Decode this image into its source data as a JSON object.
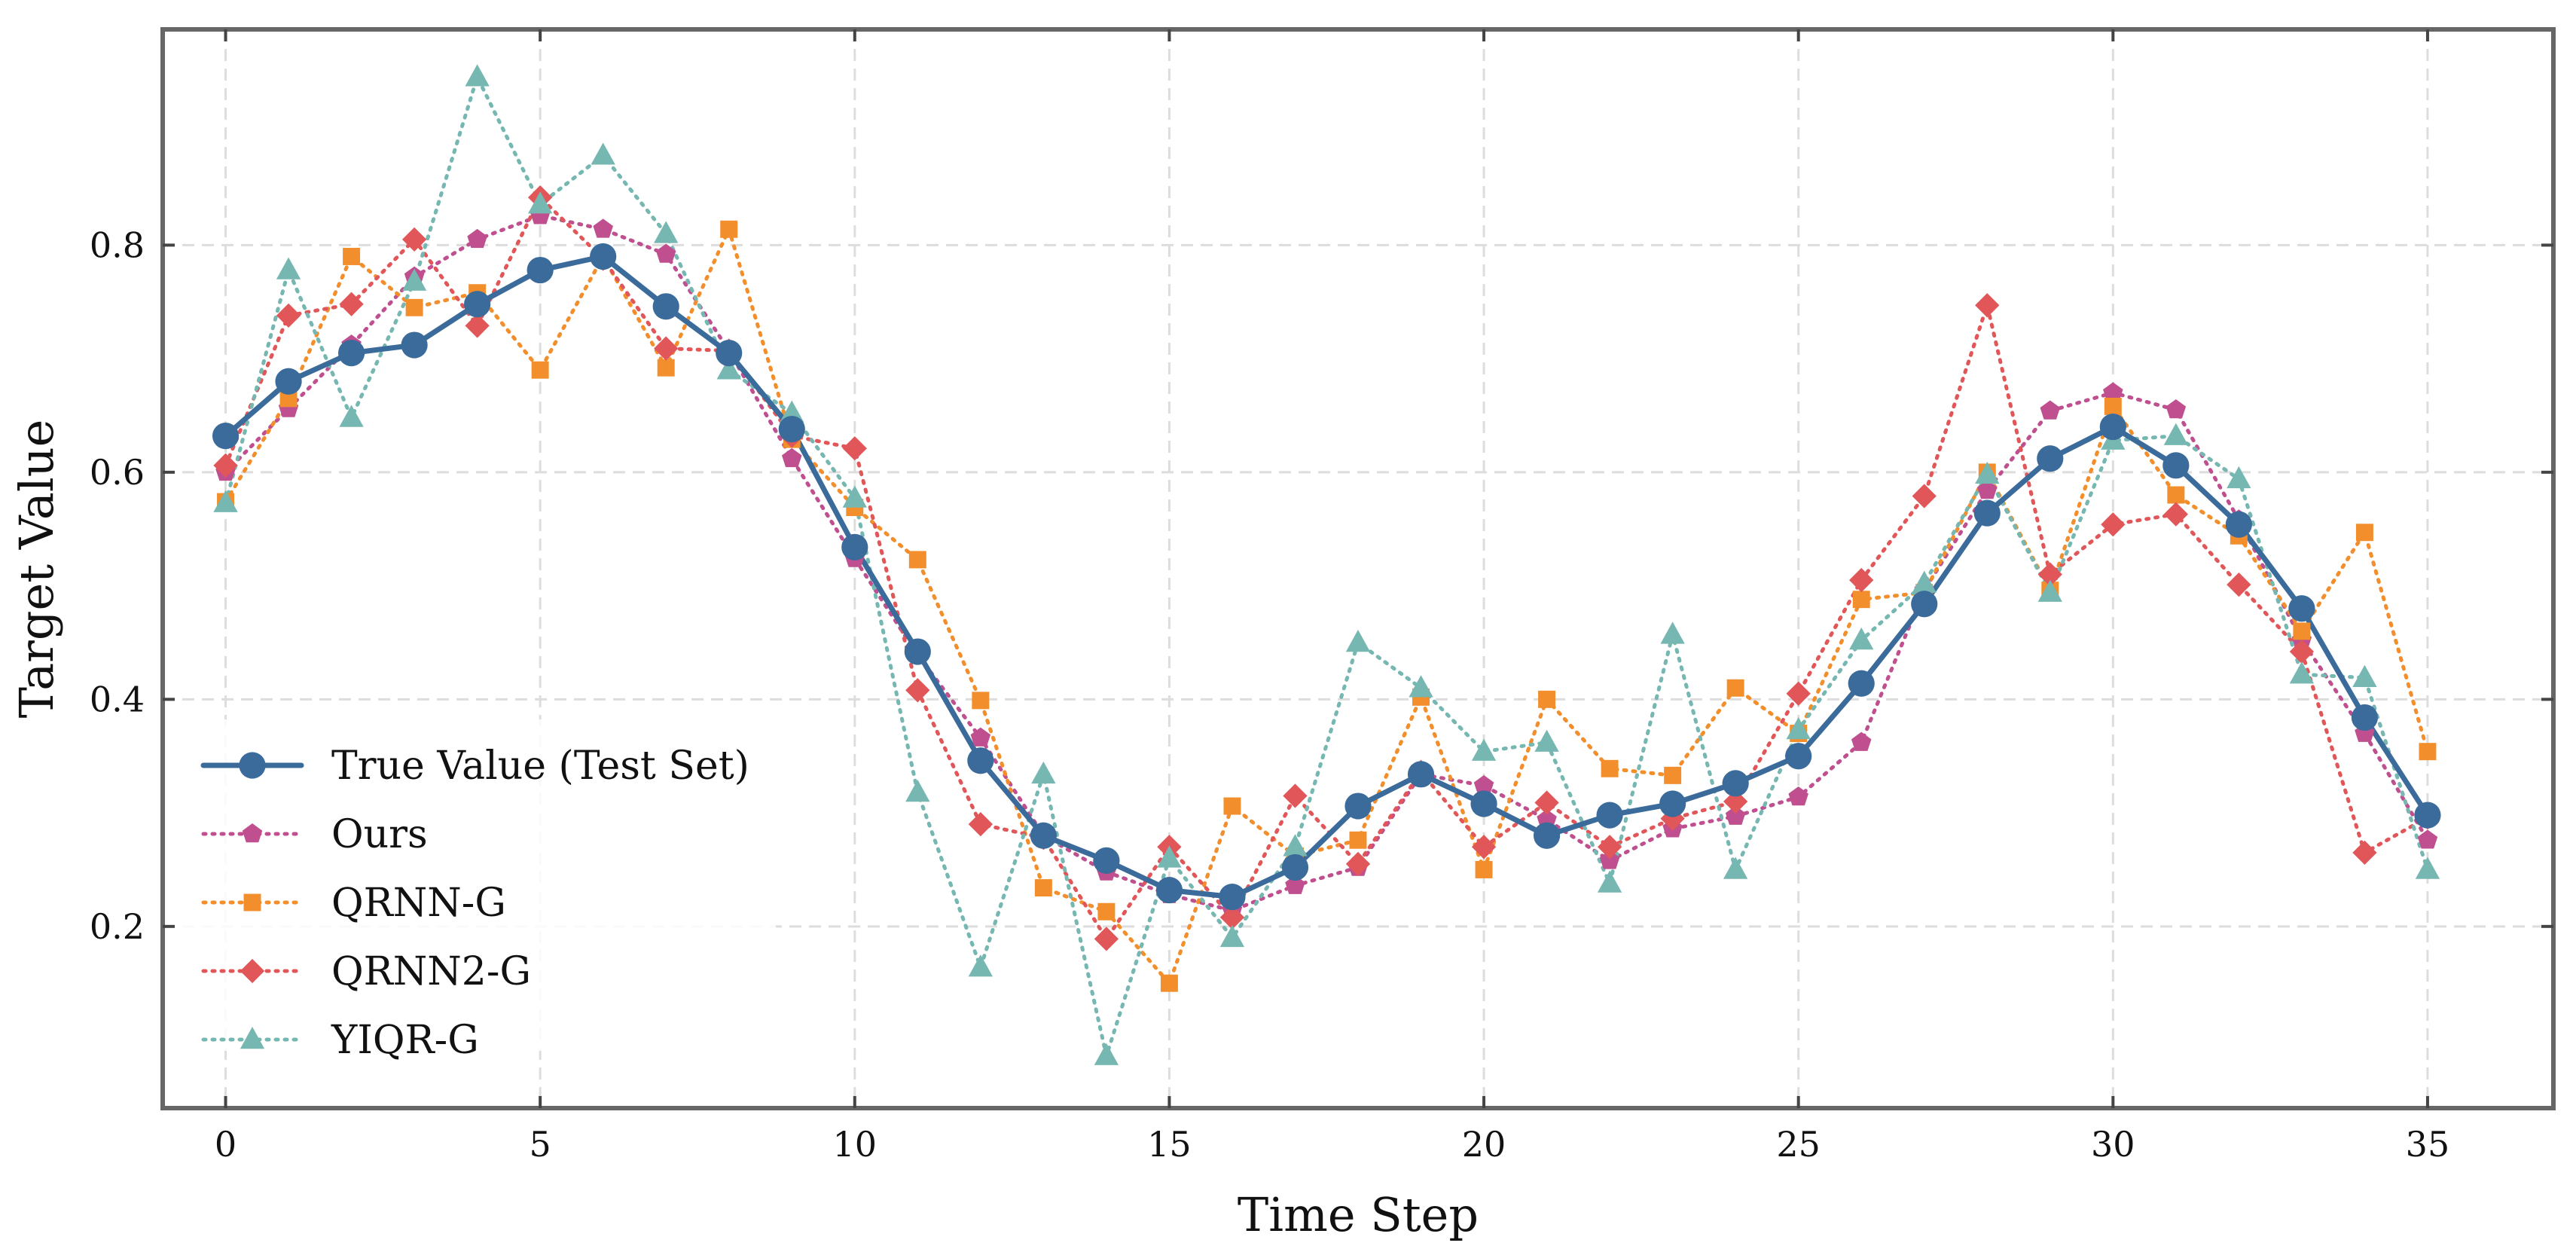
{
  "chart_data": {
    "type": "line",
    "title": "",
    "xlabel": "Time Step",
    "ylabel": "Target Value",
    "xlim": [
      -1,
      37
    ],
    "ylim": [
      0.04,
      0.99
    ],
    "xticks": [
      0,
      5,
      10,
      15,
      20,
      25,
      30,
      35
    ],
    "yticks": [
      0.2,
      0.4,
      0.6,
      0.8
    ],
    "xtick_labels": [
      "0",
      "5",
      "10",
      "15",
      "20",
      "25",
      "30",
      "35"
    ],
    "ytick_labels": [
      "0.2",
      "0.4",
      "0.6",
      "0.8"
    ],
    "grid": true,
    "legend_position": "lower-left",
    "x": [
      0,
      1,
      2,
      3,
      4,
      5,
      6,
      7,
      8,
      9,
      10,
      11,
      12,
      13,
      14,
      15,
      16,
      17,
      18,
      19,
      20,
      21,
      22,
      23,
      24,
      25,
      26,
      27,
      28,
      29,
      30,
      31,
      32,
      33,
      34,
      35
    ],
    "series": [
      {
        "name": "True Value (Test Set)",
        "color": "#3b6b9a",
        "marker": "circle",
        "linestyle": "solid",
        "values": [
          0.632,
          0.68,
          0.705,
          0.712,
          0.748,
          0.778,
          0.79,
          0.746,
          0.705,
          0.638,
          0.534,
          0.442,
          0.346,
          0.28,
          0.258,
          0.232,
          0.226,
          0.252,
          0.306,
          0.334,
          0.308,
          0.28,
          0.298,
          0.308,
          0.326,
          0.35,
          0.414,
          0.484,
          0.564,
          0.612,
          0.64,
          0.606,
          0.554,
          0.48,
          0.384,
          0.298
        ]
      },
      {
        "name": "Ours",
        "color": "#bf4f8f",
        "marker": "pentagon",
        "linestyle": "dotted",
        "values": [
          0.6,
          0.656,
          0.712,
          0.772,
          0.805,
          0.826,
          0.814,
          0.792,
          0.707,
          0.612,
          0.524,
          0.439,
          0.366,
          0.28,
          0.248,
          0.228,
          0.214,
          0.236,
          0.252,
          0.334,
          0.324,
          0.294,
          0.258,
          0.286,
          0.297,
          0.314,
          0.362,
          0.496,
          0.584,
          0.654,
          0.67,
          0.655,
          0.558,
          0.452,
          0.37,
          0.276
        ]
      },
      {
        "name": "QRNN-G",
        "color": "#f28e2b",
        "marker": "square",
        "linestyle": "dotted",
        "values": [
          0.574,
          0.665,
          0.79,
          0.745,
          0.758,
          0.69,
          0.79,
          0.692,
          0.814,
          0.629,
          0.569,
          0.523,
          0.399,
          0.234,
          0.213,
          0.15,
          0.306,
          0.262,
          0.276,
          0.402,
          0.25,
          0.4,
          0.339,
          0.333,
          0.41,
          0.37,
          0.488,
          0.494,
          0.6,
          0.496,
          0.658,
          0.58,
          0.544,
          0.46,
          0.547,
          0.354
        ]
      },
      {
        "name": "QRNN2-G",
        "color": "#e15759",
        "marker": "diamond",
        "linestyle": "dotted",
        "values": [
          0.606,
          0.738,
          0.748,
          0.805,
          0.729,
          0.842,
          0.788,
          0.709,
          0.707,
          0.632,
          0.621,
          0.408,
          0.29,
          0.278,
          0.189,
          0.27,
          0.208,
          0.315,
          0.255,
          0.336,
          0.27,
          0.309,
          0.27,
          0.295,
          0.31,
          0.405,
          0.505,
          0.579,
          0.747,
          0.51,
          0.554,
          0.563,
          0.501,
          0.442,
          0.265,
          0.296
        ]
      },
      {
        "name": "YIQR-G",
        "color": "#76b7b2",
        "marker": "triangle",
        "linestyle": "dotted",
        "values": [
          0.573,
          0.778,
          0.648,
          0.768,
          0.948,
          0.836,
          0.879,
          0.81,
          0.69,
          0.652,
          0.577,
          0.318,
          0.164,
          0.334,
          0.086,
          0.26,
          0.19,
          0.27,
          0.45,
          0.41,
          0.354,
          0.362,
          0.238,
          0.457,
          0.25,
          0.373,
          0.452,
          0.502,
          0.598,
          0.494,
          0.628,
          0.632,
          0.594,
          0.422,
          0.419,
          0.25
        ]
      }
    ]
  }
}
